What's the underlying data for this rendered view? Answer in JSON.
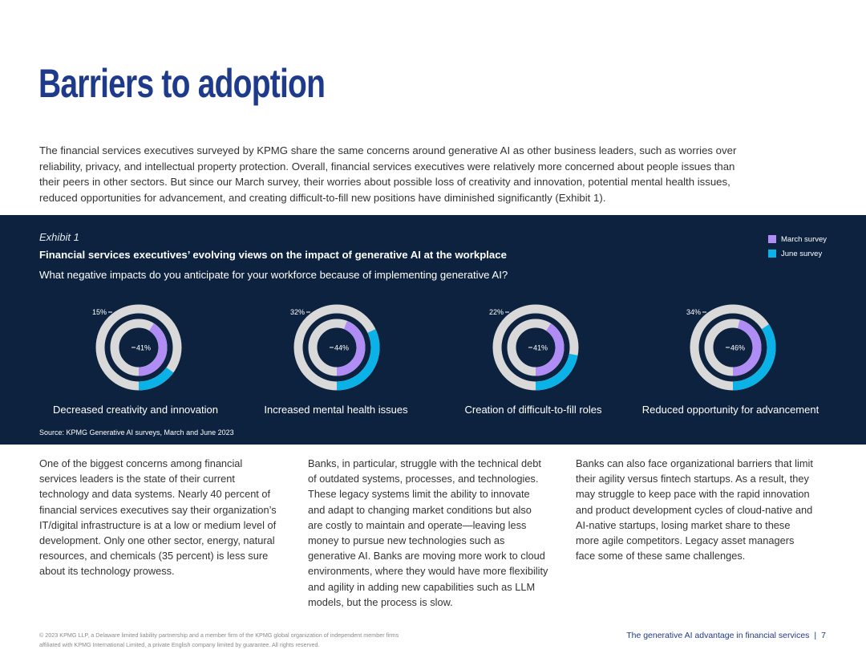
{
  "page": {
    "title": "Barriers to adoption",
    "intro": "The financial services executives surveyed by KPMG share the same concerns around generative AI as other business leaders, such as worries over reliability, privacy, and intellectual property protection. Overall, financial services executives were relatively more concerned about people issues than their peers in other sectors. But since our March survey, their worries about possible loss of creativity and innovation, potential mental health issues, reduced opportunities for advancement, and creating difficult-to-fill new positions have diminished significantly (Exhibit 1)."
  },
  "exhibit": {
    "label": "Exhibit 1",
    "title": "Financial services executives’ evolving views on the impact of generative AI at the workplace",
    "question": "What negative impacts do you anticipate for your workforce because of implementing generative AI?",
    "source": "Source: KPMG Generative AI surveys, March and June 2023"
  },
  "chart_data": {
    "type": "donut",
    "colors": {
      "March survey": "#b08cf5",
      "June survey": "#0ab2e8",
      "remainder": "#d9d9d9"
    },
    "legend": [
      "March survey",
      "June survey"
    ],
    "legend_position": "top-right",
    "categories": [
      "Decreased creativity and innovation",
      "Increased mental health issues",
      "Creation of difficult-to-fill roles",
      "Reduced opportunity for advancement"
    ],
    "series": [
      {
        "name": "March survey",
        "values": [
          41,
          44,
          41,
          46
        ],
        "labels": [
          "41%",
          "44%",
          "41%",
          "46%"
        ]
      },
      {
        "name": "June survey",
        "values": [
          15,
          32,
          22,
          34
        ],
        "labels": [
          "15%",
          "32%",
          "22%",
          "34%"
        ]
      }
    ]
  },
  "columns": [
    "One of the biggest concerns among financial services leaders is the state of their current technology and data systems. Nearly 40 percent of financial services executives say their organization’s IT/digital infrastructure is at a low or medium level of development. Only one other sector, energy, natural resources, and chemicals (35 percent) is less sure about its technology prowess.",
    "Banks, in particular, struggle with the technical debt of outdated systems, processes, and technologies. These legacy systems limit the ability to innovate and adapt to changing market conditions but also are costly to maintain and operate—leaving less money to pursue new technologies such as generative AI. Banks are moving more work to cloud environments, where they would have more flexibility and agility in adding new capabilities such as LLM models, but the process is slow.",
    "Banks can also face organizational barriers that limit their agility versus fintech startups. As a result, they may struggle to keep pace with the rapid innovation and product development cycles of cloud-native and AI-native startups, losing market share to these more agile competitors. Legacy asset managers face some of these same challenges."
  ],
  "footer": {
    "copyright": "© 2023 KPMG LLP, a Delaware limited liability partnership and a member firm of the KPMG global organization of independent member firms affiliated with KPMG International Limited, a private English company limited by guarantee. All rights reserved.",
    "doc_title": "The generative AI advantage in financial services",
    "separator": "|",
    "page_number": "7"
  }
}
